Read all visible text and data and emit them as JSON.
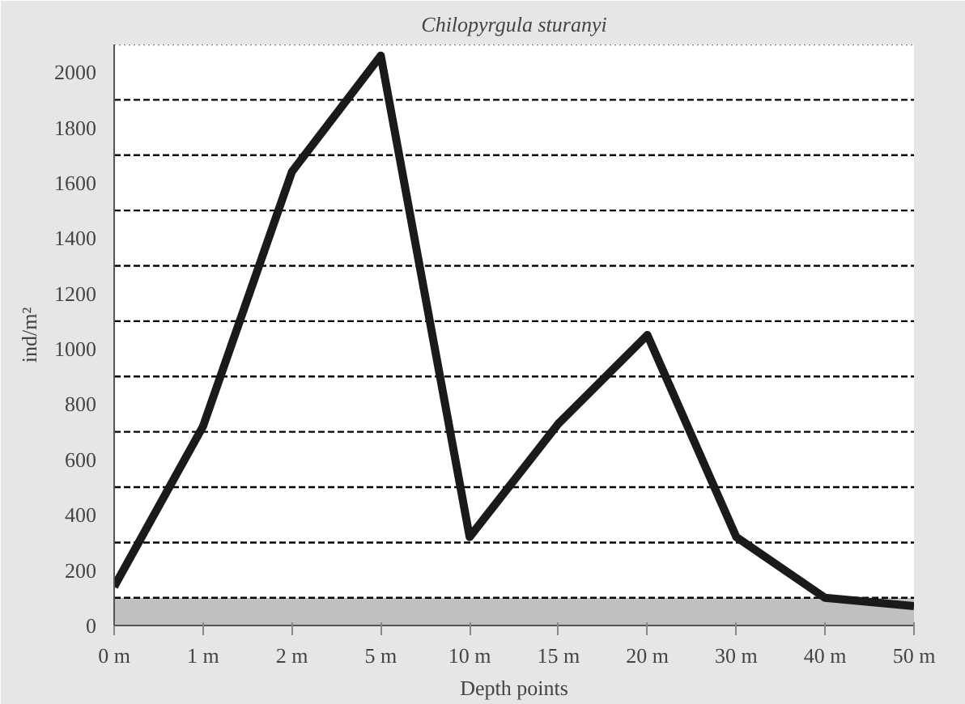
{
  "chart_data": {
    "type": "line",
    "title": "Chilopyrgula sturanyi",
    "xlabel": "Depth points",
    "ylabel": "ind/m²",
    "categories": [
      "0 m",
      "1 m",
      "2 m",
      "5 m",
      "10 m",
      "15 m",
      "20 m",
      "30 m",
      "40 m",
      "50 m"
    ],
    "series": [
      {
        "color": "#1a1a1a",
        "values": [
          140,
          720,
          1640,
          2060,
          320,
          730,
          1050,
          320,
          100,
          70
        ]
      }
    ],
    "ylim": [
      0,
      2100
    ],
    "yticks": [
      0,
      200,
      400,
      600,
      800,
      1000,
      1200,
      1400,
      1600,
      1800,
      2000
    ],
    "grid": false,
    "marker": "none",
    "line_style": "solid",
    "bands": [
      {
        "axis": "y",
        "from": 0,
        "to": 100,
        "color": "#c0c0c0"
      }
    ],
    "ref_lines": [
      {
        "axis": "y",
        "value": 100,
        "line_style": "dashed",
        "color": "#000000"
      },
      {
        "axis": "y",
        "value": 300,
        "line_style": "dashed",
        "color": "#000000"
      },
      {
        "axis": "y",
        "value": 500,
        "line_style": "dashed",
        "color": "#000000"
      },
      {
        "axis": "y",
        "value": 700,
        "line_style": "dashed",
        "color": "#000000"
      },
      {
        "axis": "y",
        "value": 900,
        "line_style": "dashed",
        "color": "#000000"
      },
      {
        "axis": "y",
        "value": 1100,
        "line_style": "dashed",
        "color": "#000000"
      },
      {
        "axis": "y",
        "value": 1300,
        "line_style": "dashed",
        "color": "#000000"
      },
      {
        "axis": "y",
        "value": 1500,
        "line_style": "dashed",
        "color": "#000000"
      },
      {
        "axis": "y",
        "value": 1700,
        "line_style": "dashed",
        "color": "#000000"
      },
      {
        "axis": "y",
        "value": 1900,
        "line_style": "dashed",
        "color": "#000000"
      },
      {
        "axis": "y",
        "value": 2100,
        "line_style": "dotted",
        "color": "#808080"
      }
    ]
  }
}
